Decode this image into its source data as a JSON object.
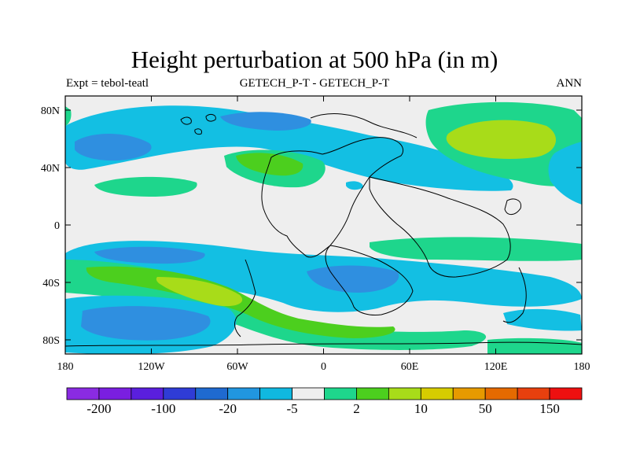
{
  "title": "Height perturbation at 500 hPa (in m)",
  "subtitle_left": "Expt = tebol-teatl",
  "subtitle_center": "GETECH_P-T - GETECH_P-T",
  "subtitle_right": "ANN",
  "lat_ticks": [
    "80N",
    "40N",
    "0",
    "40S",
    "80S"
  ],
  "lon_ticks": [
    "180",
    "120W",
    "60W",
    "0",
    "60E",
    "120E",
    "180"
  ],
  "colorbar": {
    "colors": [
      "#8a2be2",
      "#7a1fe0",
      "#5a1fdd",
      "#2f3cd6",
      "#1f6ad0",
      "#2196e0",
      "#10b8e0",
      "#eeeeee",
      "#1ed68c",
      "#4ccf1e",
      "#a8dc19",
      "#d6cc00",
      "#e69a00",
      "#e56a00",
      "#e8400e",
      "#ee1010"
    ],
    "labels": [
      "-200",
      "-100",
      "-20",
      "-5",
      "2",
      "10",
      "50",
      "150"
    ]
  },
  "colors": {
    "background": "#eeeeee",
    "light_blue": "#13bfe3",
    "mid_blue": "#2f8fe0",
    "green": "#1ed68c",
    "bright_green": "#4ccf1e",
    "yellow_green": "#a8dc19"
  }
}
